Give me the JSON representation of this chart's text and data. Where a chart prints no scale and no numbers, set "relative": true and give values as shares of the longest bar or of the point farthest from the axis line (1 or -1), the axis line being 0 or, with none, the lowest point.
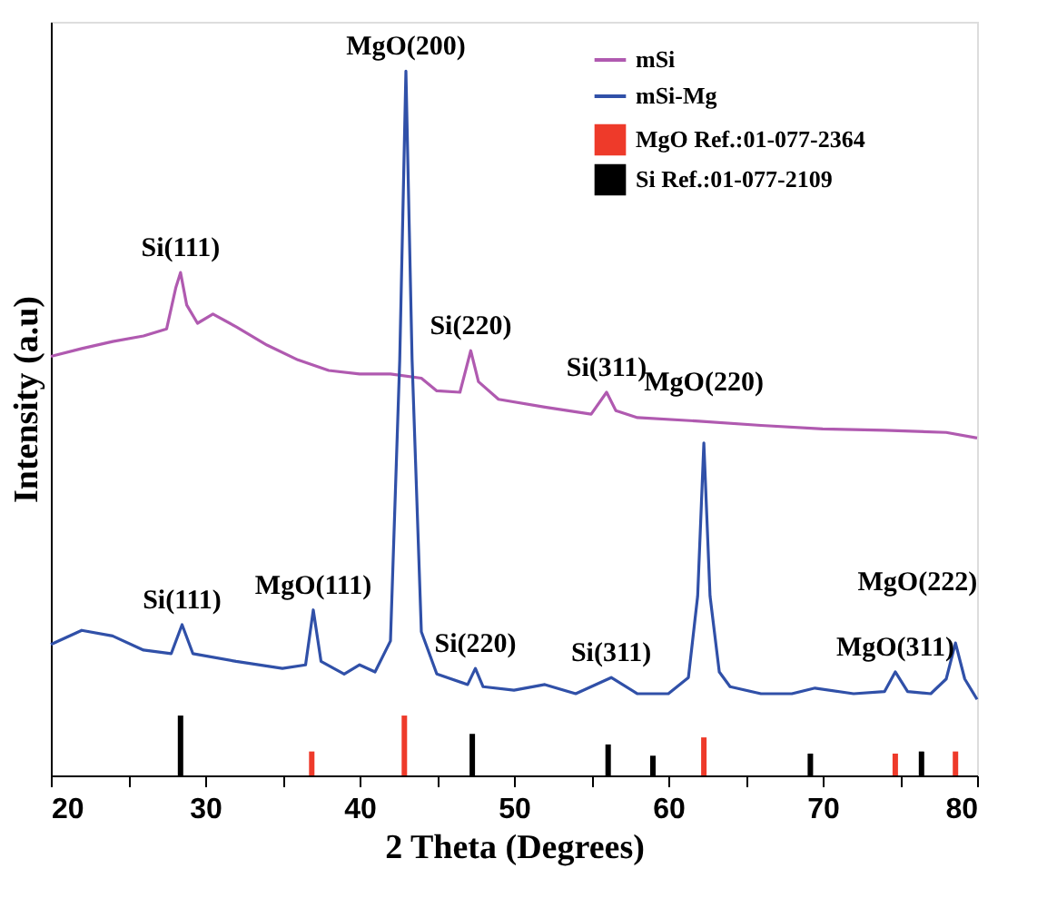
{
  "chart_data": {
    "type": "line",
    "relative": true,
    "xlabel": "2 Theta (Degrees)",
    "ylabel": "Intensity (a.u)",
    "xlim": [
      20,
      80
    ],
    "xticks": [
      20,
      {
        "value": 25,
        "label": null
      },
      30,
      {
        "value": 35,
        "label": null
      },
      40,
      {
        "value": 45,
        "label": null
      },
      50,
      {
        "value": 55,
        "label": null
      },
      60,
      {
        "value": 65,
        "label": null
      },
      70,
      {
        "value": 75,
        "label": null
      },
      80
    ],
    "legend": "top right",
    "grid": false,
    "marker": "none",
    "line_style": "solid",
    "series": [
      {
        "name": "mSi",
        "color": "#b05ab0",
        "x": [
          20,
          22,
          24,
          26,
          27.5,
          28.1,
          28.4,
          28.8,
          29.5,
          30.5,
          32,
          34,
          36,
          38,
          40,
          42,
          44,
          45,
          46.5,
          47.2,
          47.7,
          49,
          52,
          55,
          56,
          56.6,
          58,
          62,
          66,
          70,
          74,
          78,
          80
        ],
        "values": [
          0.595,
          0.606,
          0.616,
          0.624,
          0.634,
          0.693,
          0.714,
          0.668,
          0.642,
          0.655,
          0.637,
          0.611,
          0.59,
          0.575,
          0.57,
          0.57,
          0.564,
          0.546,
          0.544,
          0.603,
          0.559,
          0.534,
          0.523,
          0.513,
          0.544,
          0.518,
          0.508,
          0.503,
          0.497,
          0.492,
          0.49,
          0.487,
          0.479
        ]
      },
      {
        "name": "mSi-Mg",
        "color": "#3050a8",
        "x": [
          20,
          22,
          24,
          26,
          27.8,
          28.5,
          29.2,
          32,
          35,
          36.5,
          37,
          37.5,
          39,
          40,
          41,
          42,
          42.6,
          43,
          43.4,
          44,
          45,
          47,
          47.5,
          48,
          50,
          52,
          54,
          56.3,
          58,
          60,
          61.3,
          61.9,
          62.3,
          62.7,
          63.3,
          64,
          66,
          68,
          69.5,
          72,
          74,
          74.7,
          75.5,
          77,
          78,
          78.6,
          79.2,
          80
        ],
        "values": [
          0.186,
          0.206,
          0.198,
          0.178,
          0.173,
          0.214,
          0.173,
          0.162,
          0.152,
          0.157,
          0.235,
          0.162,
          0.144,
          0.157,
          0.147,
          0.191,
          0.59,
          1.0,
          0.59,
          0.204,
          0.144,
          0.129,
          0.152,
          0.126,
          0.121,
          0.129,
          0.116,
          0.139,
          0.116,
          0.116,
          0.139,
          0.255,
          0.472,
          0.255,
          0.147,
          0.126,
          0.116,
          0.116,
          0.124,
          0.116,
          0.119,
          0.147,
          0.119,
          0.116,
          0.137,
          0.188,
          0.137,
          0.108
        ]
      },
      {
        "name": "MgO Ref.:01-077-2364",
        "color": "#ee3a2a",
        "type": "bar",
        "x": [
          36.9,
          42.9,
          62.3,
          74.7,
          78.6
        ],
        "values": [
          0.034,
          0.085,
          0.054,
          0.031,
          0.034
        ]
      },
      {
        "name": "Si Ref.:01-077-2109",
        "color": "#000000",
        "type": "bar",
        "x": [
          28.4,
          47.3,
          56.1,
          59.0,
          69.2,
          76.4
        ],
        "values": [
          0.085,
          0.059,
          0.044,
          0.028,
          0.031,
          0.034
        ]
      }
    ],
    "annotations": [
      {
        "text": "Si(111)",
        "x": 28.4,
        "y": 0.714
      },
      {
        "text": "Si(220)",
        "x": 47.2,
        "y": 0.603
      },
      {
        "text": "Si(311)",
        "x": 56,
        "y": 0.544
      },
      {
        "text": "MgO(200)",
        "x": 43,
        "y": 1.0
      },
      {
        "text": "Si(111)",
        "x": 28.5,
        "y": 0.214
      },
      {
        "text": "MgO(111)",
        "x": 37,
        "y": 0.235
      },
      {
        "text": "Si(220)",
        "x": 47.5,
        "y": 0.152
      },
      {
        "text": "Si(311)",
        "x": 56.3,
        "y": 0.139
      },
      {
        "text": "MgO(220)",
        "x": 62.3,
        "y": 0.472
      },
      {
        "text": "MgO(311)",
        "x": 74.7,
        "y": 0.147
      },
      {
        "text": "MgO(222)",
        "x": 78.6,
        "y": 0.188
      }
    ]
  }
}
